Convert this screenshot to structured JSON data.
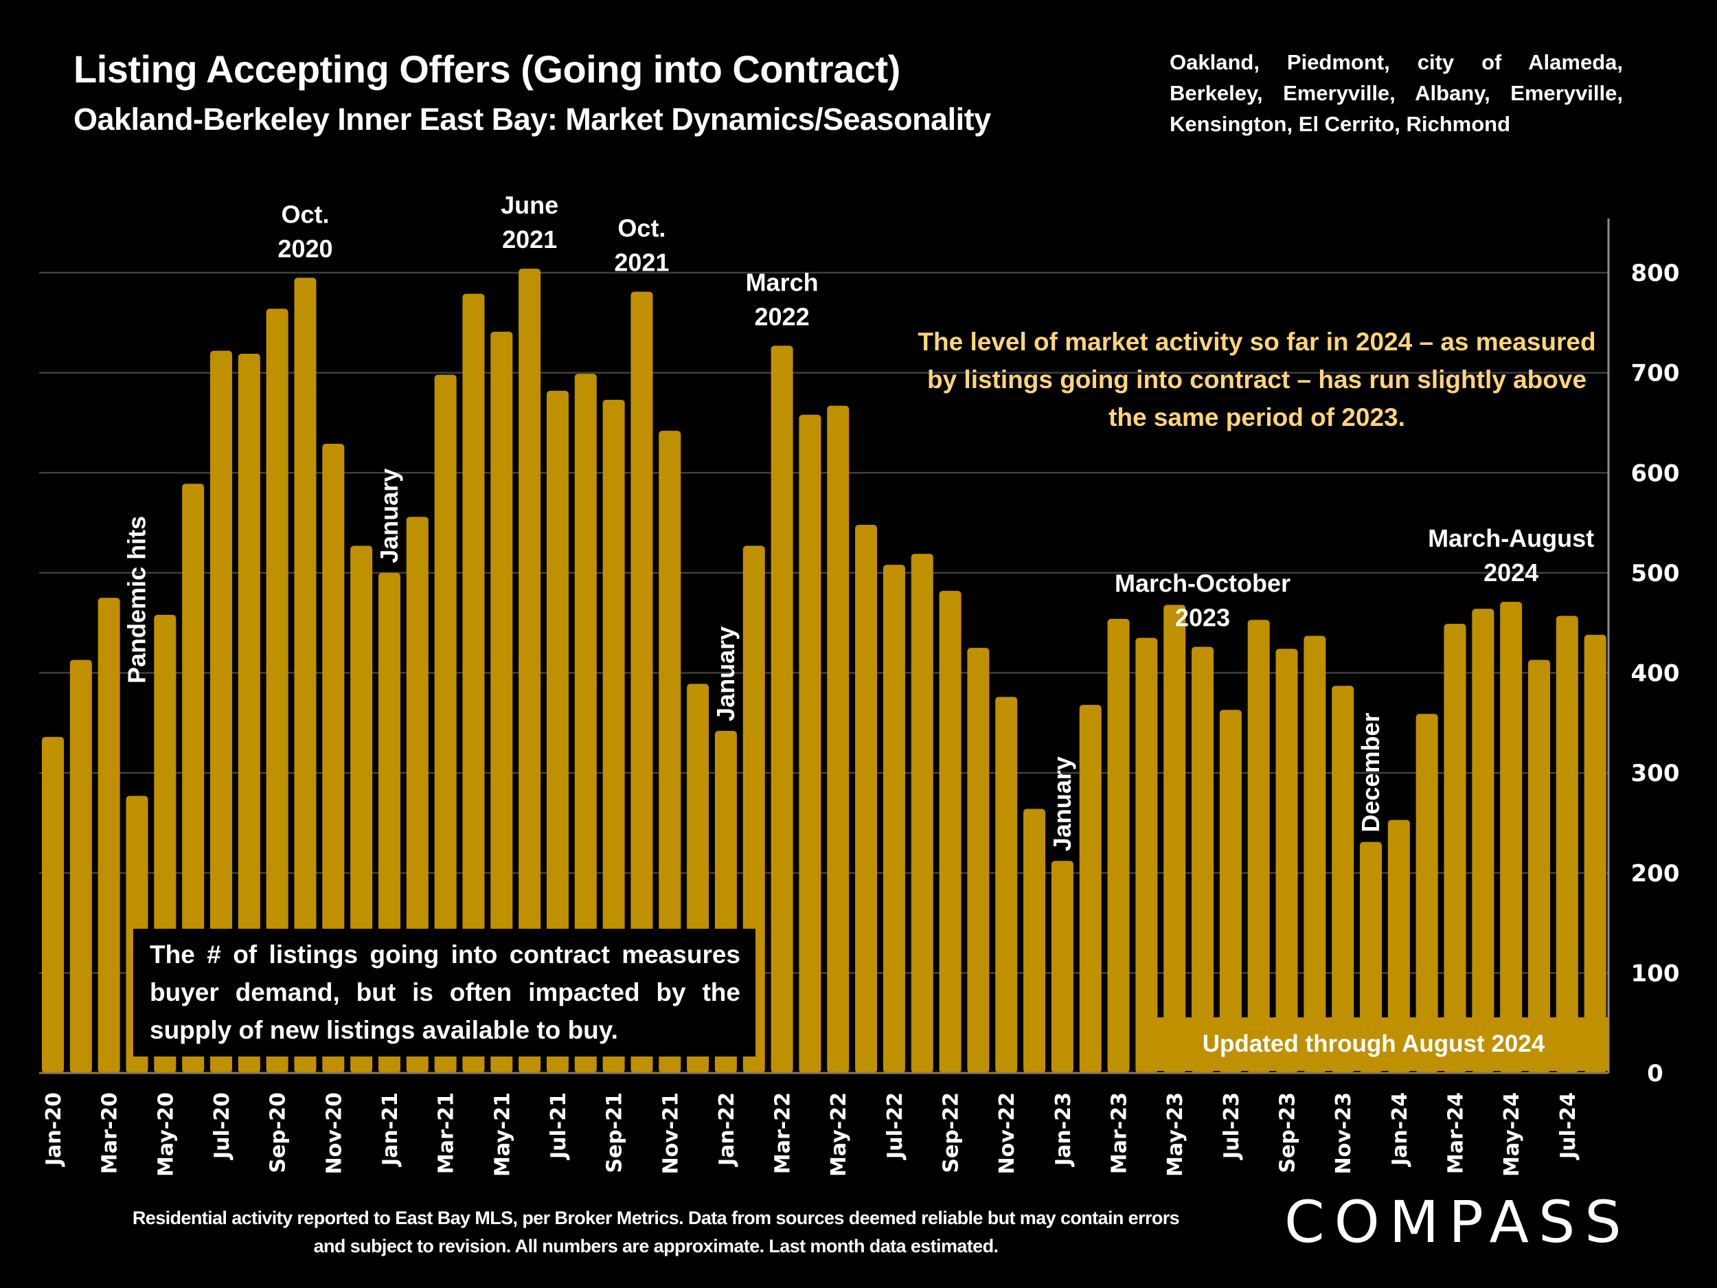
{
  "header": {
    "title": "Listing Accepting Offers (Going into Contract)",
    "subtitle": "Oakland-Berkeley Inner East Bay: Market Dynamics/Seasonality",
    "areas": "Oakland, Piedmont, city of Alameda, Berkeley, Emeryville, Albany, Emeryville, Kensington, El Cerrito, Richmond"
  },
  "notes": {
    "left_box": "The # of listings going into contract measures buyer demand, but is often impacted by the supply of new listings available to buy.",
    "insight": "The level of market activity so far in 2024 – as measured by listings going into contract – has run slightly above the same period of 2023.",
    "updated": "Updated through August 2024"
  },
  "footer": {
    "disclaimer": "Residential activity reported to East Bay MLS, per Broker Metrics. Data from sources deemed reliable but may contain errors and subject to revision. All numbers are approximate. Last month data estimated.",
    "logo": "COMPASS"
  },
  "colors": {
    "bar": "#bf9000",
    "background": "#000000",
    "insight_text": "#ffd579",
    "grid": "#3f3f3f"
  },
  "chart_data": {
    "type": "bar",
    "title": "Listing Accepting Offers (Going into Contract)",
    "xlabel": "",
    "ylabel": "",
    "ylim": [
      0,
      850
    ],
    "yticks": [
      0,
      100,
      200,
      300,
      400,
      500,
      600,
      700,
      800
    ],
    "y_axis_side": "right",
    "grid": true,
    "categories": [
      "Jan-20",
      "Feb-20",
      "Mar-20",
      "Apr-20",
      "May-20",
      "Jun-20",
      "Jul-20",
      "Aug-20",
      "Sep-20",
      "Oct-20",
      "Nov-20",
      "Dec-20",
      "Jan-21",
      "Feb-21",
      "Mar-21",
      "Apr-21",
      "May-21",
      "Jun-21",
      "Jul-21",
      "Aug-21",
      "Sep-21",
      "Oct-21",
      "Nov-21",
      "Dec-21",
      "Jan-22",
      "Feb-22",
      "Mar-22",
      "Apr-22",
      "May-22",
      "Jun-22",
      "Jul-22",
      "Aug-22",
      "Sep-22",
      "Oct-22",
      "Nov-22",
      "Dec-22",
      "Jan-23",
      "Feb-23",
      "Mar-23",
      "Apr-23",
      "May-23",
      "Jun-23",
      "Jul-23",
      "Aug-23",
      "Sep-23",
      "Oct-23",
      "Nov-23",
      "Dec-23",
      "Jan-24",
      "Feb-24",
      "Mar-24",
      "Apr-24",
      "May-24",
      "Jun-24",
      "Jul-24",
      "Aug-24"
    ],
    "tick_labels_every": 2,
    "values": [
      336,
      413,
      475,
      277,
      458,
      589,
      722,
      719,
      764,
      795,
      629,
      527,
      500,
      556,
      698,
      779,
      741,
      804,
      682,
      699,
      673,
      781,
      642,
      389,
      342,
      527,
      727,
      658,
      667,
      548,
      508,
      519,
      482,
      425,
      376,
      264,
      212,
      368,
      454,
      435,
      468,
      426,
      363,
      453,
      424,
      437,
      387,
      231,
      253,
      359,
      449,
      464,
      471,
      413,
      457,
      438
    ],
    "annotations": [
      {
        "text": "Pandemic hits",
        "at": "Apr-20",
        "orientation": "vertical"
      },
      {
        "text": "Oct. 2020",
        "lines": [
          "Oct.",
          "2020"
        ],
        "at": "Oct-20"
      },
      {
        "text": "January",
        "at": "Jan-21",
        "orientation": "vertical"
      },
      {
        "text": "June 2021",
        "lines": [
          "June",
          "2021"
        ],
        "at": "Jun-21"
      },
      {
        "text": "Oct. 2021",
        "lines": [
          "Oct.",
          "2021"
        ],
        "at": "Oct-21"
      },
      {
        "text": "January",
        "at": "Jan-22",
        "orientation": "vertical"
      },
      {
        "text": "March 2022",
        "lines": [
          "March",
          "2022"
        ],
        "at": "Mar-22"
      },
      {
        "text": "January",
        "at": "Jan-23",
        "orientation": "vertical"
      },
      {
        "text": "March-October 2023",
        "lines": [
          "March-October",
          "2023"
        ],
        "at": "Jun-23"
      },
      {
        "text": "December",
        "at": "Dec-23",
        "orientation": "vertical"
      },
      {
        "text": "March-August 2024",
        "lines": [
          "March-August",
          "2024"
        ],
        "at": "May-24"
      }
    ]
  }
}
